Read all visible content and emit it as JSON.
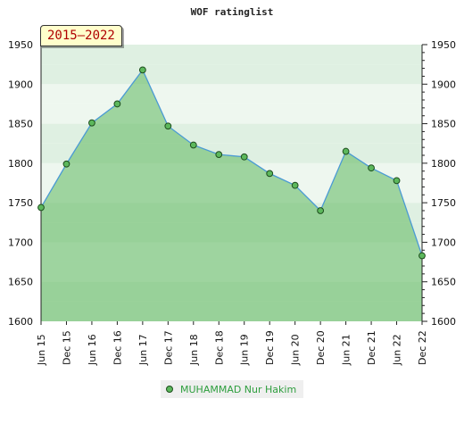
{
  "chart_data": {
    "type": "area",
    "title": "WOF ratinglist",
    "period_label": "2015–2022",
    "categories": [
      "Jun 15",
      "Dec 15",
      "Jun 16",
      "Dec 16",
      "Jun 17",
      "Dec 17",
      "Jun 18",
      "Dec 18",
      "Jun 19",
      "Dec 19",
      "Jun 20",
      "Dec 20",
      "Jun 21",
      "Dec 21",
      "Jun 22",
      "Dec 22"
    ],
    "series": [
      {
        "name": "MUHAMMAD Nur Hakim",
        "values": [
          1744,
          1799,
          1851,
          1875,
          1918,
          1847,
          1823,
          1811,
          1808,
          1787,
          1772,
          1740,
          1815,
          1794,
          1778,
          1683
        ]
      }
    ],
    "yticks": [
      1600,
      1650,
      1700,
      1750,
      1800,
      1850,
      1900,
      1950
    ],
    "ylim": [
      1600,
      1950
    ],
    "y_axis_sides": "both",
    "legend_position": "bottom-center",
    "colors": {
      "area_fill": "#5cb85c",
      "line": "#4a9ad4",
      "point_fill": "#5cb85c",
      "point_stroke": "#1d4d1d",
      "legend_text": "#2e9e3e",
      "badge_text": "#b00000",
      "badge_bg": "#fffecb"
    }
  }
}
